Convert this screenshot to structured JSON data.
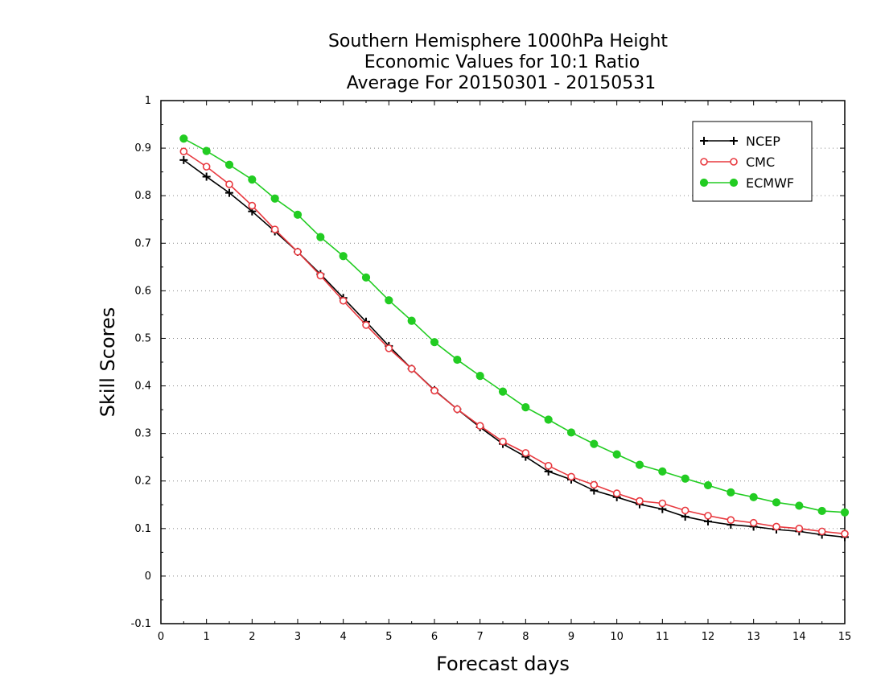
{
  "chart_data": {
    "type": "line",
    "title_lines": [
      "Southern Hemisphere 1000hPa Height",
      "Economic Values for 10:1 Ratio",
      "Average For 20150301 - 20150531"
    ],
    "xlabel": "Forecast days",
    "ylabel": "Skill Scores",
    "xlim": [
      0,
      15
    ],
    "ylim": [
      -0.1,
      1
    ],
    "x_ticks": [
      0,
      1,
      2,
      3,
      4,
      5,
      6,
      7,
      8,
      9,
      10,
      11,
      12,
      13,
      14,
      15
    ],
    "y_ticks": [
      -0.1,
      0,
      0.1,
      0.2,
      0.3,
      0.4,
      0.5,
      0.6,
      0.7,
      0.8,
      0.9,
      1
    ],
    "y_tick_labels": [
      "-0.1",
      "0",
      "0.1",
      "0.2",
      "0.3",
      "0.4",
      "0.5",
      "0.6",
      "0.7",
      "0.8",
      "0.9",
      "1"
    ],
    "grid": "horizontal dotted",
    "legend_position": "top-right",
    "x": [
      0.5,
      1,
      1.5,
      2,
      2.5,
      3,
      3.5,
      4,
      4.5,
      5,
      5.5,
      6,
      6.5,
      7,
      7.5,
      8,
      8.5,
      9,
      9.5,
      10,
      10.5,
      11,
      11.5,
      12,
      12.5,
      13,
      13.5,
      14,
      14.5,
      15
    ],
    "series": [
      {
        "name": "NCEP",
        "color": "#000000",
        "marker": "plus",
        "values": [
          0.875,
          0.84,
          0.806,
          0.767,
          0.725,
          0.682,
          0.635,
          0.585,
          0.535,
          0.484,
          0.436,
          0.391,
          0.351,
          0.313,
          0.278,
          0.251,
          0.22,
          0.203,
          0.18,
          0.166,
          0.151,
          0.141,
          0.125,
          0.115,
          0.108,
          0.104,
          0.098,
          0.094,
          0.087,
          0.082
        ]
      },
      {
        "name": "CMC",
        "color": "#e8393f",
        "marker": "open-circle",
        "values": [
          0.893,
          0.861,
          0.824,
          0.779,
          0.729,
          0.682,
          0.632,
          0.579,
          0.528,
          0.479,
          0.436,
          0.39,
          0.351,
          0.316,
          0.283,
          0.259,
          0.232,
          0.209,
          0.192,
          0.174,
          0.158,
          0.153,
          0.138,
          0.127,
          0.118,
          0.112,
          0.104,
          0.1,
          0.094,
          0.089
        ]
      },
      {
        "name": "ECMWF",
        "color": "#22cc22",
        "marker": "filled-circle",
        "values": [
          0.92,
          0.894,
          0.865,
          0.834,
          0.794,
          0.76,
          0.713,
          0.673,
          0.628,
          0.58,
          0.537,
          0.492,
          0.455,
          0.421,
          0.388,
          0.355,
          0.329,
          0.302,
          0.278,
          0.256,
          0.234,
          0.22,
          0.205,
          0.191,
          0.176,
          0.166,
          0.155,
          0.148,
          0.137,
          0.134
        ]
      }
    ]
  }
}
